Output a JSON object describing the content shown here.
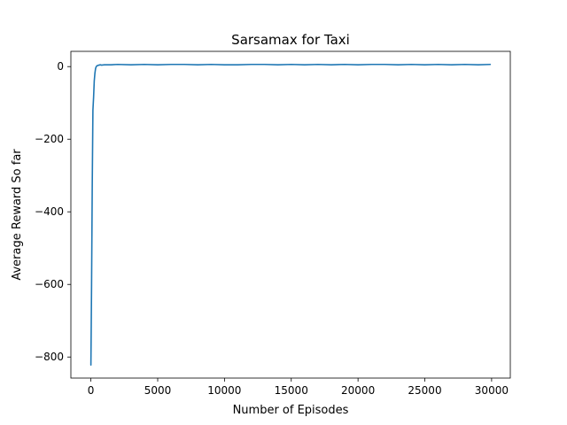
{
  "chart_data": {
    "type": "line",
    "title": "Sarsamax for Taxi",
    "xlabel": "Number of Episodes",
    "ylabel": "Average Reward So far",
    "xlim": [
      -1500,
      31400
    ],
    "ylim": [
      -858,
      42
    ],
    "xticks": [
      0,
      5000,
      10000,
      15000,
      20000,
      25000,
      30000
    ],
    "yticks": [
      -800,
      -600,
      -400,
      -200,
      0
    ],
    "xtick_labels": [
      "0",
      "5000",
      "10000",
      "15000",
      "20000",
      "25000",
      "30000"
    ],
    "ytick_labels": [
      "−800",
      "−600",
      "−400",
      "−200",
      "0"
    ],
    "grid": false,
    "series": [
      {
        "color": "#1f77b4",
        "x": [
          0,
          50,
          100,
          150,
          200,
          250,
          300,
          350,
          400,
          450,
          500,
          600,
          700,
          800,
          1000,
          1500,
          2000,
          3000,
          4000,
          5000,
          6000,
          7000,
          8000,
          9000,
          10000,
          11000,
          12000,
          13000,
          14000,
          15000,
          16000,
          17000,
          18000,
          19000,
          20000,
          21000,
          22000,
          23000,
          24000,
          25000,
          26000,
          27000,
          28000,
          29000,
          29900
        ],
        "y": [
          -822,
          -600,
          -330,
          -120,
          -85,
          -40,
          -18,
          -5,
          0,
          2,
          3,
          4,
          5,
          4,
          5,
          5,
          6,
          5,
          6,
          5,
          6,
          6,
          5,
          6,
          5,
          5,
          6,
          6,
          5,
          6,
          5,
          6,
          5,
          6,
          5,
          6,
          6,
          5,
          6,
          5,
          6,
          5,
          6,
          5,
          6
        ]
      }
    ]
  }
}
